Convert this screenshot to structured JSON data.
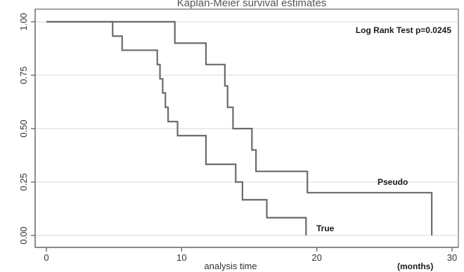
{
  "chart_data": {
    "type": "line",
    "title": "Kaplan-Meier survival estimates",
    "xlabel": "analysis time",
    "x_unit": "(months)",
    "ylabel": "",
    "xlim": [
      0,
      30
    ],
    "ylim": [
      0,
      1
    ],
    "x_ticks": [
      0,
      10,
      20,
      30
    ],
    "y_ticks": [
      0.0,
      0.25,
      0.5,
      0.75,
      1.0
    ],
    "x_tick_labels": [
      "0",
      "10",
      "20",
      "30"
    ],
    "y_tick_labels": [
      "0.00",
      "0.25",
      "0.50",
      "0.75",
      "1.00"
    ],
    "grid": true,
    "annotation": "Log Rank Test p=0.0245",
    "series": [
      {
        "name": "Pseudo",
        "x": [
          0,
          9.5,
          11.8,
          13.2,
          13.4,
          13.8,
          15.2,
          15.5,
          19.3,
          28.5
        ],
        "y": [
          1.0,
          0.9,
          0.8,
          0.7,
          0.6,
          0.5,
          0.4,
          0.3,
          0.2,
          0.0
        ]
      },
      {
        "name": "True",
        "x": [
          0,
          4.9,
          5.6,
          8.2,
          8.4,
          8.6,
          8.8,
          9.0,
          9.7,
          11.8,
          14.0,
          14.5,
          16.3,
          19.2
        ],
        "y": [
          1.0,
          0.933,
          0.867,
          0.8,
          0.733,
          0.667,
          0.6,
          0.533,
          0.467,
          0.333,
          0.25,
          0.167,
          0.083,
          0.0
        ]
      }
    ]
  }
}
